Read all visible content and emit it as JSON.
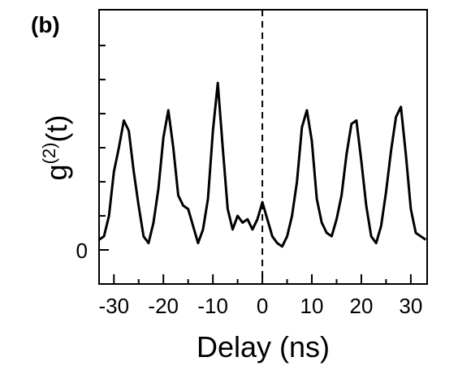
{
  "chart_data": {
    "type": "line",
    "panel_label": "(b)",
    "ylabel": {
      "base": "g",
      "sup": "(2)",
      "tail": "(t)"
    },
    "xlabel": "Delay (ns)",
    "x": [
      -33,
      -32,
      -31,
      -30,
      -29,
      -28,
      -27,
      -26,
      -25,
      -24,
      -23,
      -22,
      -21,
      -20,
      -19,
      -18,
      -17,
      -16,
      -15,
      -14,
      -13,
      -12,
      -11,
      -10,
      -9,
      -8,
      -7,
      -6,
      -5,
      -4,
      -3,
      -2,
      -1,
      0,
      1,
      2,
      3,
      4,
      5,
      6,
      7,
      8,
      9,
      10,
      11,
      12,
      13,
      14,
      15,
      16,
      17,
      18,
      19,
      20,
      21,
      22,
      23,
      24,
      25,
      26,
      27,
      28,
      29,
      30,
      31,
      32,
      33
    ],
    "series": [
      {
        "color": "#000000",
        "values": [
          0.3,
          0.4,
          1.0,
          2.3,
          3.0,
          3.8,
          3.5,
          2.3,
          1.3,
          0.4,
          0.2,
          0.8,
          1.8,
          3.3,
          4.1,
          3.0,
          1.6,
          1.3,
          1.2,
          0.7,
          0.2,
          0.6,
          1.5,
          3.5,
          4.9,
          3.0,
          1.2,
          0.6,
          1.0,
          0.8,
          0.9,
          0.6,
          0.9,
          1.4,
          0.9,
          0.4,
          0.2,
          0.1,
          0.4,
          1.0,
          2.0,
          3.6,
          4.1,
          3.2,
          1.5,
          0.8,
          0.5,
          0.4,
          0.9,
          1.6,
          2.8,
          3.7,
          3.8,
          2.6,
          1.3,
          0.4,
          0.2,
          0.7,
          1.7,
          2.9,
          3.9,
          4.2,
          2.8,
          1.2,
          0.5,
          0.4,
          0.3
        ]
      }
    ],
    "xlim": [
      -33,
      33.3
    ],
    "ylim": [
      -1,
      7.05
    ],
    "xticks": [
      -30,
      -20,
      -10,
      0,
      10,
      20,
      30
    ],
    "xminor_ticks": [
      -25,
      -15,
      -5,
      5,
      15,
      25
    ],
    "yticks": [
      0
    ],
    "yminor_ticks": [
      1,
      2,
      3,
      4,
      5,
      6
    ],
    "reference_line_x": 0
  }
}
